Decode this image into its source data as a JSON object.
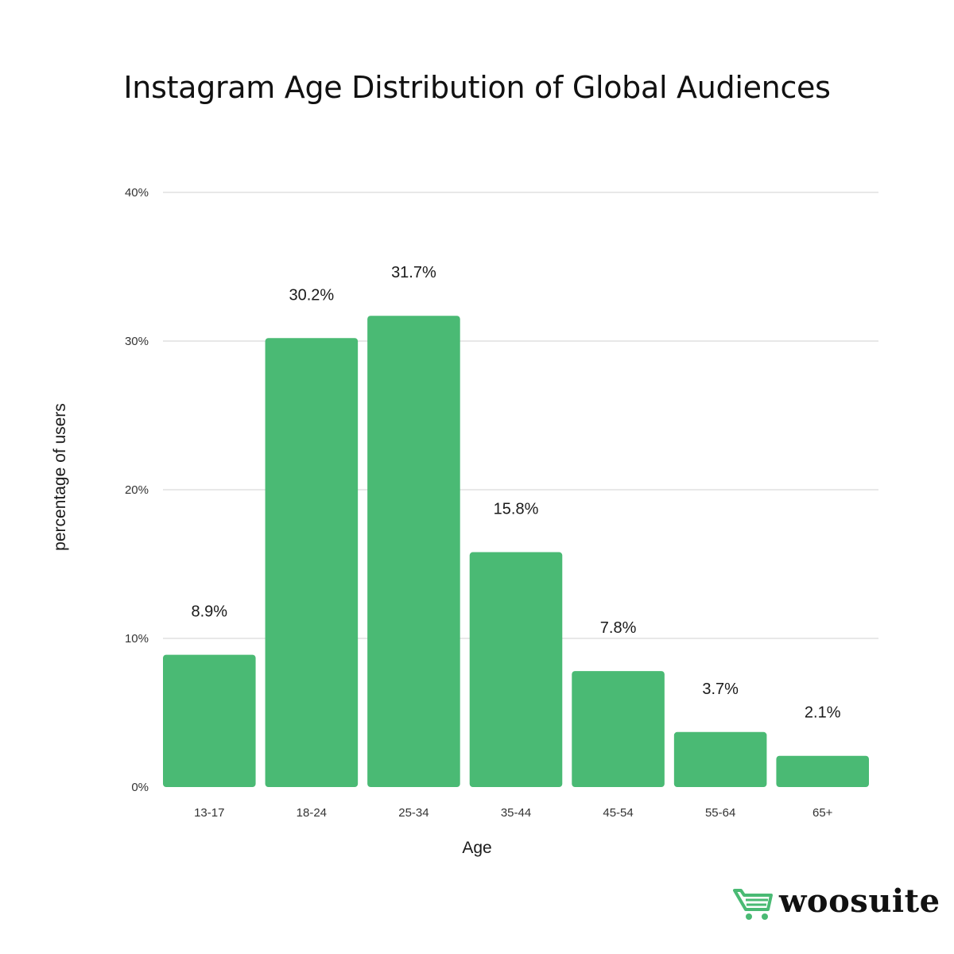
{
  "chart_data": {
    "type": "bar",
    "title": "Instagram Age Distribution of Global Audiences",
    "xlabel": "Age",
    "ylabel": "percentage of users",
    "categories": [
      "13-17",
      "18-24",
      "25-34",
      "35-44",
      "45-54",
      "55-64",
      "65+"
    ],
    "values": [
      8.9,
      30.2,
      31.7,
      15.8,
      7.8,
      3.7,
      2.1
    ],
    "data_labels": [
      "8.9%",
      "30.2%",
      "31.7%",
      "15.8%",
      "7.8%",
      "3.7%",
      "2.1%"
    ],
    "ylim": [
      0,
      40
    ],
    "yticks": [
      0,
      10,
      20,
      30,
      40
    ],
    "ytick_labels": [
      "0%",
      "10%",
      "20%",
      "30%",
      "40%"
    ],
    "grid": true,
    "bar_color": "#4aba74"
  },
  "brand": {
    "name": "woosuite",
    "icon": "shopping-cart-icon",
    "color": "#4aba74"
  }
}
